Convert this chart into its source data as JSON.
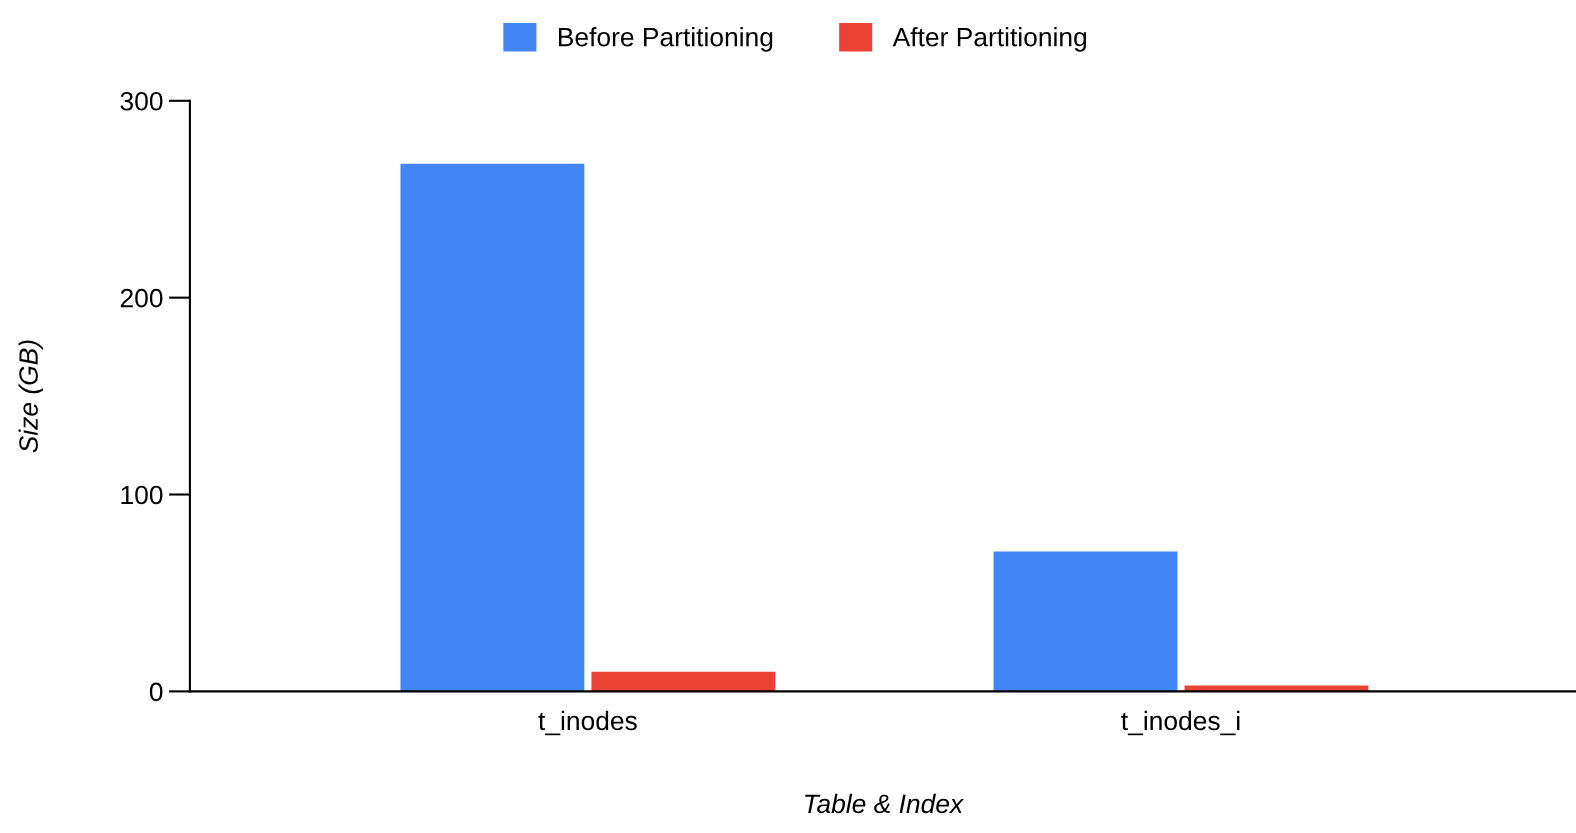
{
  "chart_data": {
    "type": "bar",
    "xlabel": "Table & Index",
    "ylabel": "Size (GB)",
    "categories": [
      "t_inodes",
      "t_inodes_i"
    ],
    "series": [
      {
        "name": "Before Partitioning",
        "color": "#4285f4",
        "values": [
          268,
          71
        ]
      },
      {
        "name": "After Partitioning",
        "color": "#ea4335",
        "values": [
          10,
          3
        ]
      }
    ],
    "ylim": [
      0,
      300
    ],
    "yticks": [
      0,
      100,
      200,
      300
    ],
    "grid": false,
    "legend": "top"
  }
}
